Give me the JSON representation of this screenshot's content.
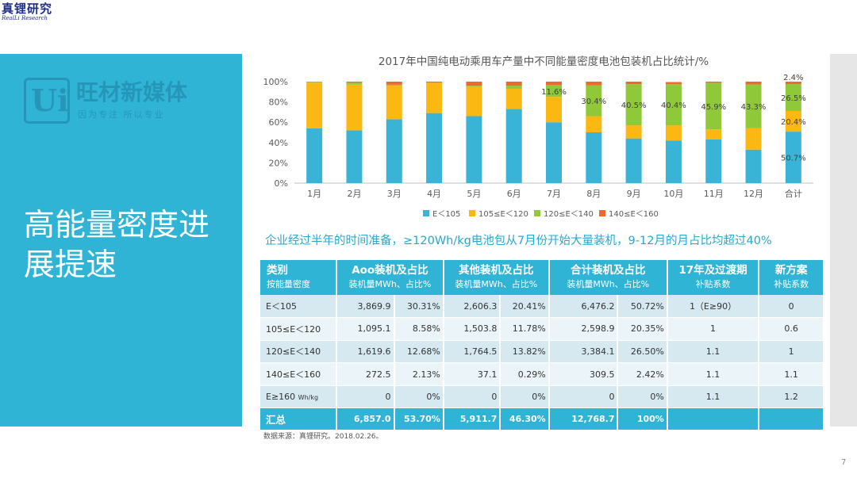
{
  "logo": {
    "main": "真锂研究",
    "sub": "RealLi Research"
  },
  "watermark": {
    "mark": "Ui",
    "title": "旺材新媒体",
    "subtitle": "因为专注 所以专业"
  },
  "slide_title": "高能量密度进展提速",
  "headline": "企业经过半年的时间准备，≥120Wh/kg电池包从7月份开始大量装机，9-12月的月占比均超过40%",
  "colors": {
    "accent": "#2fb4d6",
    "s1": "#3ab4d6",
    "s2": "#fbb813",
    "s3": "#8fc93a",
    "s4": "#ec6a2c"
  },
  "chart_data": {
    "type": "bar",
    "stacked": true,
    "title": "2017年中国纯电动乘用车产量中不同能量密度电池包装机占比统计/%",
    "categories": [
      "1月",
      "2月",
      "3月",
      "4月",
      "5月",
      "6月",
      "7月",
      "8月",
      "9月",
      "10月",
      "11月",
      "12月",
      "合计"
    ],
    "ylim": [
      0,
      100
    ],
    "yticks": [
      0,
      20,
      40,
      60,
      80,
      100
    ],
    "ytick_labels": [
      "0%",
      "20%",
      "40%",
      "60%",
      "80%",
      "100%"
    ],
    "grid": false,
    "legend_position": "bottom",
    "series": [
      {
        "name": "E＜105",
        "color": "#3ab4d6",
        "values": [
          54,
          52,
          63,
          69,
          66,
          73,
          60,
          50,
          44,
          42,
          43,
          33,
          50.7
        ]
      },
      {
        "name": "105≤E＜120",
        "color": "#fbb813",
        "values": [
          45,
          45,
          33,
          30,
          29,
          20,
          25,
          16,
          13,
          15,
          10,
          21,
          20.4
        ]
      },
      {
        "name": "120≤E＜140",
        "color": "#8fc93a",
        "values": [
          1,
          2,
          1,
          0,
          1,
          3,
          11.6,
          30.4,
          40.5,
          40.4,
          45.9,
          43.3,
          26.5
        ]
      },
      {
        "name": "140≤E＜160",
        "color": "#ec6a2c",
        "values": [
          0,
          1,
          3,
          1,
          4,
          4,
          3.4,
          3.6,
          2.5,
          2.2,
          1.1,
          2.7,
          2.4
        ]
      }
    ],
    "annotations": [
      {
        "category": "7月",
        "series": "120≤E＜140",
        "text": "11.6%"
      },
      {
        "category": "8月",
        "series": "120≤E＜140",
        "text": "30.4%"
      },
      {
        "category": "9月",
        "series": "120≤E＜140",
        "text": "40.5%"
      },
      {
        "category": "10月",
        "series": "120≤E＜140",
        "text": "40.4%"
      },
      {
        "category": "11月",
        "series": "120≤E＜140",
        "text": "45.9%"
      },
      {
        "category": "12月",
        "series": "120≤E＜140",
        "text": "43.3%"
      },
      {
        "category": "合计",
        "series": "E＜105",
        "text": "50.7%"
      },
      {
        "category": "合计",
        "series": "105≤E＜120",
        "text": "20.4%"
      },
      {
        "category": "合计",
        "series": "120≤E＜140",
        "text": "26.5%"
      },
      {
        "category": "合计",
        "series": "140≤E＜160",
        "text": "2.4%"
      }
    ]
  },
  "table": {
    "headers": [
      {
        "title": "类别",
        "sub": "按能量密度"
      },
      {
        "title": "Aoo装机及占比",
        "sub": "装机量MWh、占比%"
      },
      {
        "title": "其他装机及占比",
        "sub": "装机量MWh、占比%"
      },
      {
        "title": "合计装机及占比",
        "sub": "装机量MWh、占比%"
      },
      {
        "title": "17年及过渡期",
        "sub": "补贴系数"
      },
      {
        "title": "新方案",
        "sub": "补贴系数"
      }
    ],
    "rows": [
      {
        "label": "E＜105",
        "unit": "",
        "a_mwh": "3,869.9",
        "a_pct": "30.31%",
        "o_mwh": "2,606.3",
        "o_pct": "20.41%",
        "t_mwh": "6,476.2",
        "t_pct": "50.72%",
        "coef17": "1（E≥90）",
        "coefnew": "0"
      },
      {
        "label": "105≤E＜120",
        "unit": "",
        "a_mwh": "1,095.1",
        "a_pct": "8.58%",
        "o_mwh": "1,503.8",
        "o_pct": "11.78%",
        "t_mwh": "2,598.9",
        "t_pct": "20.35%",
        "coef17": "1",
        "coefnew": "0.6"
      },
      {
        "label": "120≤E＜140",
        "unit": "",
        "a_mwh": "1,619.6",
        "a_pct": "12.68%",
        "o_mwh": "1,764.5",
        "o_pct": "13.82%",
        "t_mwh": "3,384.1",
        "t_pct": "26.50%",
        "coef17": "1.1",
        "coefnew": "1"
      },
      {
        "label": "140≤E＜160",
        "unit": "",
        "a_mwh": "272.5",
        "a_pct": "2.13%",
        "o_mwh": "37.1",
        "o_pct": "0.29%",
        "t_mwh": "309.5",
        "t_pct": "2.42%",
        "coef17": "1.1",
        "coefnew": "1.1"
      },
      {
        "label": "E≥160",
        "unit": "Wh/kg",
        "a_mwh": "0",
        "a_pct": "0%",
        "o_mwh": "0",
        "o_pct": "0%",
        "t_mwh": "0",
        "t_pct": "0%",
        "coef17": "1.1",
        "coefnew": "1.2"
      }
    ],
    "total": {
      "label": "汇总",
      "a_mwh": "6,857.0",
      "a_pct": "53.70%",
      "o_mwh": "5,911.7",
      "o_pct": "46.30%",
      "t_mwh": "12,768.7",
      "t_pct": "100%",
      "coef17": "",
      "coefnew": ""
    }
  },
  "source": "数据来源：真锂研究。2018.02.26。",
  "page_number": "7"
}
